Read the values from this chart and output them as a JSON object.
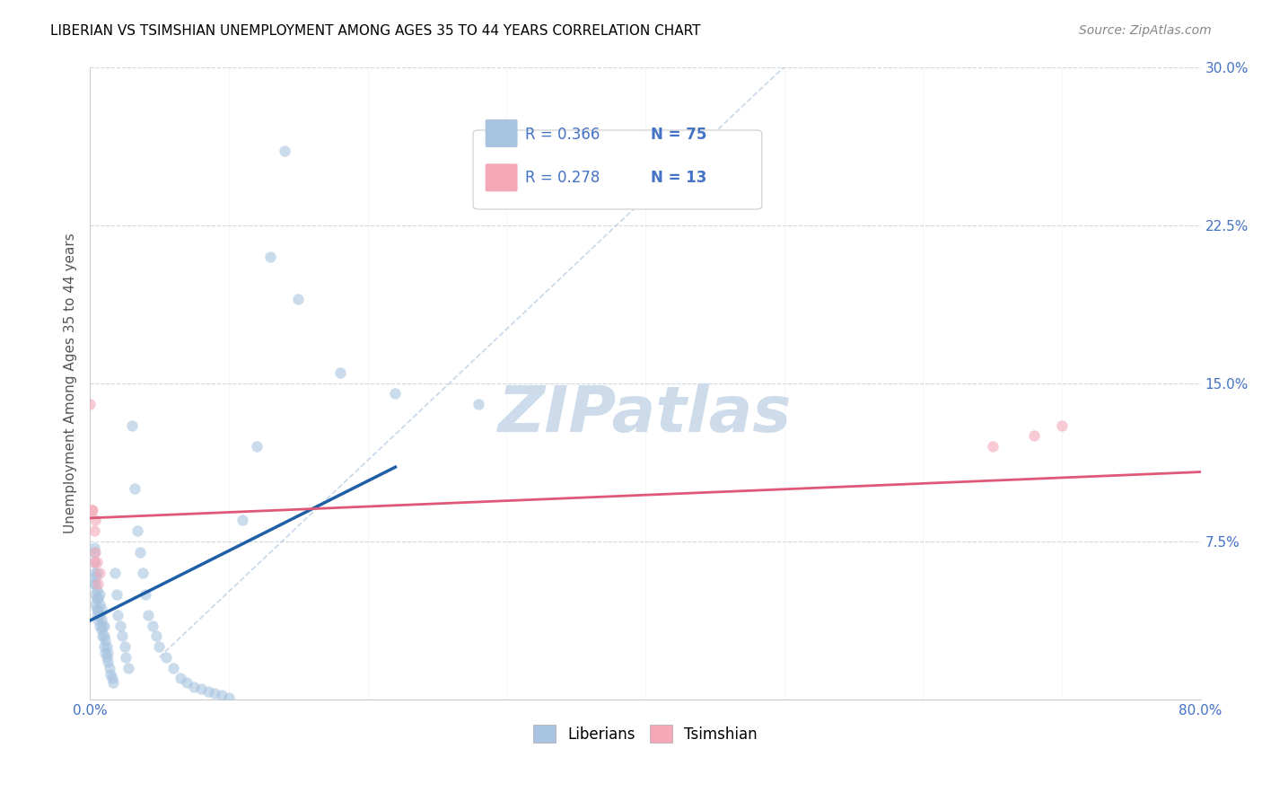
{
  "title": "LIBERIAN VS TSIMSHIAN UNEMPLOYMENT AMONG AGES 35 TO 44 YEARS CORRELATION CHART",
  "source": "Source: ZipAtlas.com",
  "xlabel": "",
  "ylabel": "Unemployment Among Ages 35 to 44 years",
  "xlim": [
    0.0,
    0.8
  ],
  "ylim": [
    0.0,
    0.3
  ],
  "xticks": [
    0.0,
    0.1,
    0.2,
    0.3,
    0.4,
    0.5,
    0.6,
    0.7,
    0.8
  ],
  "xticklabels": [
    "0.0%",
    "",
    "",
    "",
    "",
    "",
    "",
    "",
    "80.0%"
  ],
  "yticks": [
    0.0,
    0.075,
    0.15,
    0.225,
    0.3
  ],
  "yticklabels": [
    "",
    "7.5%",
    "15.0%",
    "22.5%",
    "30.0%"
  ],
  "liberian_R": 0.366,
  "liberian_N": 75,
  "tsimshian_R": 0.278,
  "tsimshian_N": 13,
  "liberian_color": "#a8c4e0",
  "liberian_line_color": "#1f5fa6",
  "tsimshian_color": "#f4a8b8",
  "tsimshian_line_color": "#e05878",
  "scatter_size": 80,
  "scatter_alpha": 0.6,
  "watermark": "ZIPatlas",
  "watermark_color": "#c8d8e8",
  "liberian_x": [
    0.003,
    0.003,
    0.003,
    0.003,
    0.003,
    0.004,
    0.004,
    0.004,
    0.004,
    0.005,
    0.005,
    0.005,
    0.005,
    0.005,
    0.006,
    0.006,
    0.006,
    0.007,
    0.007,
    0.007,
    0.007,
    0.008,
    0.008,
    0.008,
    0.009,
    0.009,
    0.01,
    0.01,
    0.01,
    0.011,
    0.011,
    0.012,
    0.012,
    0.013,
    0.013,
    0.014,
    0.015,
    0.016,
    0.017,
    0.018,
    0.019,
    0.02,
    0.022,
    0.023,
    0.025,
    0.026,
    0.028,
    0.03,
    0.032,
    0.034,
    0.036,
    0.038,
    0.04,
    0.042,
    0.045,
    0.048,
    0.05,
    0.055,
    0.06,
    0.065,
    0.07,
    0.075,
    0.08,
    0.085,
    0.09,
    0.095,
    0.1,
    0.11,
    0.12,
    0.13,
    0.14,
    0.15,
    0.18,
    0.22,
    0.28
  ],
  "liberian_y": [
    0.055,
    0.06,
    0.065,
    0.07,
    0.072,
    0.045,
    0.05,
    0.055,
    0.058,
    0.04,
    0.043,
    0.048,
    0.052,
    0.06,
    0.038,
    0.042,
    0.048,
    0.035,
    0.04,
    0.045,
    0.05,
    0.033,
    0.038,
    0.043,
    0.03,
    0.035,
    0.025,
    0.03,
    0.035,
    0.022,
    0.028,
    0.02,
    0.025,
    0.018,
    0.022,
    0.015,
    0.012,
    0.01,
    0.008,
    0.06,
    0.05,
    0.04,
    0.035,
    0.03,
    0.025,
    0.02,
    0.015,
    0.13,
    0.1,
    0.08,
    0.07,
    0.06,
    0.05,
    0.04,
    0.035,
    0.03,
    0.025,
    0.02,
    0.015,
    0.01,
    0.008,
    0.006,
    0.005,
    0.004,
    0.003,
    0.002,
    0.001,
    0.085,
    0.12,
    0.21,
    0.26,
    0.19,
    0.155,
    0.145,
    0.14
  ],
  "tsimshian_x": [
    0.0,
    0.001,
    0.002,
    0.003,
    0.003,
    0.004,
    0.004,
    0.005,
    0.006,
    0.007,
    0.65,
    0.68,
    0.7
  ],
  "tsimshian_y": [
    0.14,
    0.09,
    0.09,
    0.08,
    0.065,
    0.085,
    0.07,
    0.065,
    0.055,
    0.06,
    0.12,
    0.125,
    0.13
  ],
  "diag_line_color": "#b0c8e0",
  "grid_color": "#d0d8e0"
}
